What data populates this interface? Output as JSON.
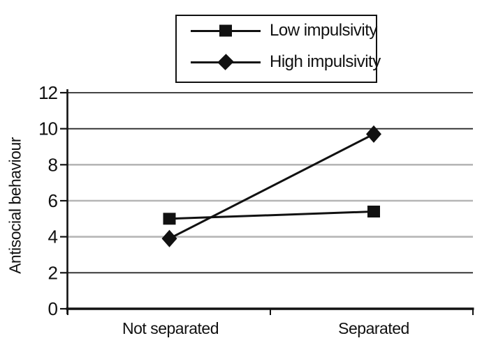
{
  "chart_data": {
    "type": "line",
    "title": "",
    "categories": [
      "Not separated",
      "Separated"
    ],
    "series": [
      {
        "name": "Low impulsivity",
        "marker": "square",
        "values": [
          5.0,
          5.4
        ]
      },
      {
        "name": "High impulsivity",
        "marker": "diamond",
        "values": [
          3.9,
          9.7
        ]
      }
    ],
    "xlabel": "",
    "ylabel": "Antisocial behaviour",
    "ylim": [
      0,
      12
    ],
    "yticks": [
      0,
      2,
      4,
      6,
      8,
      10,
      12
    ],
    "grid": "horizontal",
    "legend_position": "top-center",
    "colors": {
      "series": "#111111",
      "text": "#111111",
      "grid_light": "#b6b6b6",
      "grid_dark": "#2a2a2a",
      "axis": "#111111",
      "background": "#ffffff"
    }
  }
}
